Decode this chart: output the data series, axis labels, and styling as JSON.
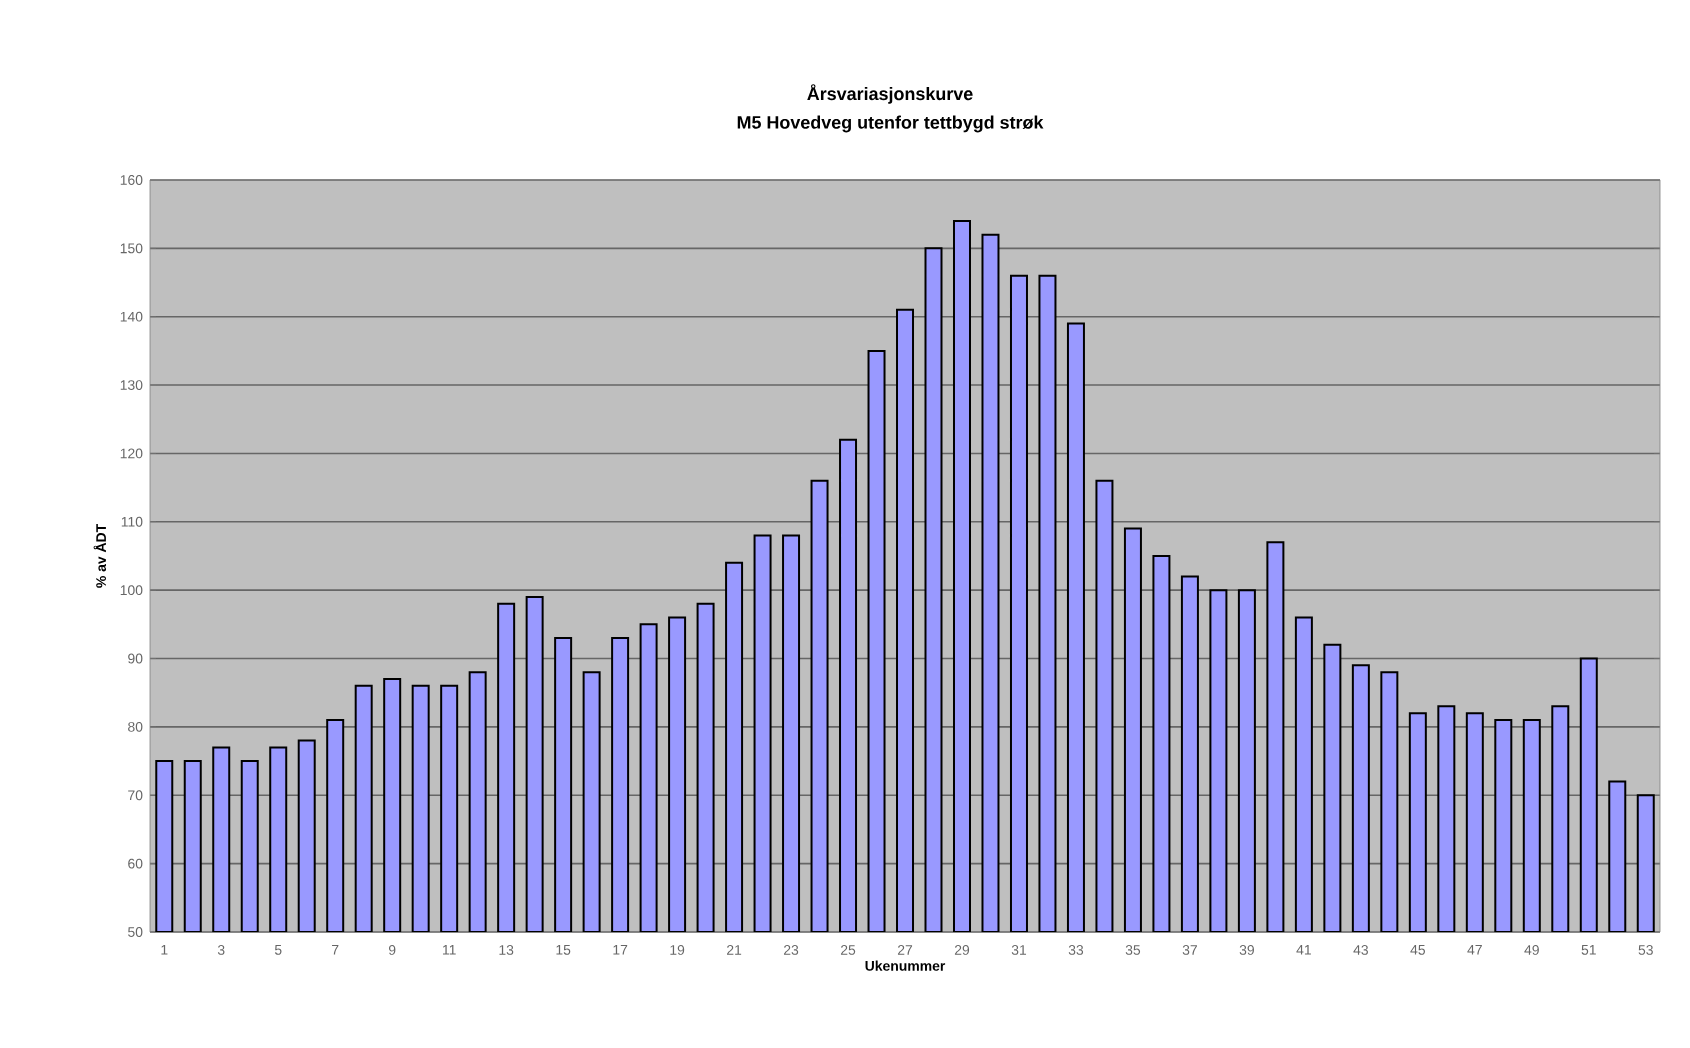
{
  "chart_data": {
    "type": "bar",
    "title": "Årsvariasjonskurve",
    "subtitle": "M5 Hovedveg utenfor tettbygd strøk",
    "xlabel": "Ukenummer",
    "ylabel": "% av ÅDT",
    "categories": [
      "1",
      null,
      "3",
      null,
      "5",
      null,
      "7",
      null,
      "9",
      null,
      "11",
      null,
      "13",
      null,
      "15",
      null,
      "17",
      null,
      "19",
      null,
      "21",
      null,
      "23",
      null,
      "25",
      null,
      "27",
      null,
      "29",
      null,
      "31",
      null,
      "33",
      null,
      "35",
      null,
      "37",
      null,
      "39",
      null,
      "41",
      null,
      "43",
      null,
      "45",
      null,
      "47",
      null,
      "49",
      null,
      "51",
      null,
      "53"
    ],
    "values": [
      75,
      75,
      77,
      75,
      77,
      78,
      81,
      86,
      87,
      86,
      86,
      88,
      98,
      99,
      93,
      88,
      93,
      95,
      96,
      98,
      104,
      108,
      108,
      116,
      122,
      135,
      141,
      150,
      154,
      152,
      146,
      146,
      139,
      116,
      109,
      105,
      102,
      100,
      100,
      107,
      96,
      92,
      89,
      88,
      82,
      83,
      82,
      81,
      81,
      83,
      90,
      72,
      70
    ],
    "color": "#9999ff",
    "ylim": [
      50,
      160
    ],
    "yticks": [
      50,
      60,
      70,
      80,
      90,
      100,
      110,
      120,
      130,
      140,
      150,
      160
    ],
    "grid": "y"
  }
}
